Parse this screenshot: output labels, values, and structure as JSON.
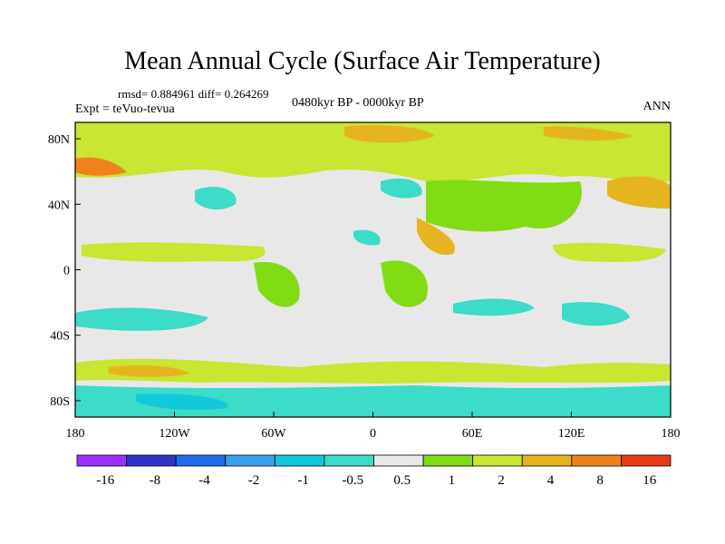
{
  "header": {
    "title": "Mean Annual Cycle (Surface Air Temperature)",
    "stats": "rmsd= 0.884961 diff= 0.264269",
    "experiment": "Expt = teVuo-tevua",
    "period": "0480kyr BP - 0000kyr BP",
    "season": "ANN"
  },
  "axes": {
    "x_ticks": [
      {
        "lon": -180,
        "label": "180"
      },
      {
        "lon": -120,
        "label": "120W"
      },
      {
        "lon": -60,
        "label": "60W"
      },
      {
        "lon": 0,
        "label": "0"
      },
      {
        "lon": 60,
        "label": "60E"
      },
      {
        "lon": 120,
        "label": "120E"
      },
      {
        "lon": 180,
        "label": "180"
      }
    ],
    "y_ticks": [
      {
        "lat": 80,
        "label": "80N"
      },
      {
        "lat": 40,
        "label": "40N"
      },
      {
        "lat": 0,
        "label": "0"
      },
      {
        "lat": -40,
        "label": "40S"
      },
      {
        "lat": -80,
        "label": "80S"
      }
    ],
    "lon_range": [
      -180,
      180
    ],
    "lat_range": [
      -90,
      90
    ]
  },
  "colorbar": {
    "labels": [
      "-16",
      "-8",
      "-4",
      "-2",
      "-1",
      "-0.5",
      "0.5",
      "1",
      "2",
      "4",
      "8",
      "16"
    ],
    "colors": [
      "#9b30ff",
      "#3232c8",
      "#1e6eeb",
      "#3ca0f0",
      "#14c8dc",
      "#3cdcc8",
      "#e8e8e8",
      "#82dc14",
      "#c8e632",
      "#e6b41e",
      "#f0821e",
      "#e63c14"
    ]
  }
}
